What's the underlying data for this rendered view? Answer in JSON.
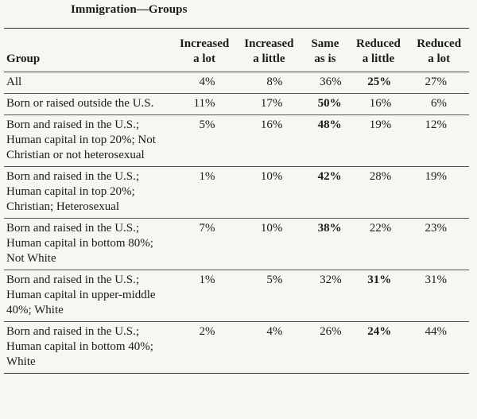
{
  "title": "Immigration—Groups",
  "columns": {
    "group": "Group",
    "increased_a_lot": [
      "Increased",
      "a lot"
    ],
    "increased_a_little": [
      "Increased",
      "a little"
    ],
    "same_as_is": [
      "Same",
      "as is"
    ],
    "reduced_a_little": [
      "Reduced",
      "a little"
    ],
    "reduced_a_lot": [
      "Reduced",
      "a lot"
    ]
  },
  "rows": [
    {
      "group": "All",
      "values": [
        "4%",
        "8%",
        "36%",
        "25%",
        "27%"
      ],
      "bold_index": 3
    },
    {
      "group": "Born or raised outside the U.S.",
      "values": [
        "11%",
        "17%",
        "50%",
        "16%",
        "6%"
      ],
      "bold_index": 2
    },
    {
      "group": "Born and raised in the U.S.; Human capital in top 20%; Not Christian or not heterosexual",
      "values": [
        "5%",
        "16%",
        "48%",
        "19%",
        "12%"
      ],
      "bold_index": 2
    },
    {
      "group": "Born and raised in the U.S.; Human capital in top 20%; Christian; Heterosexual",
      "values": [
        "1%",
        "10%",
        "42%",
        "28%",
        "19%"
      ],
      "bold_index": 2
    },
    {
      "group": "Born and raised in the U.S.; Human capital in bottom 80%; Not White",
      "values": [
        "7%",
        "10%",
        "38%",
        "22%",
        "23%"
      ],
      "bold_index": 2
    },
    {
      "group": "Born and raised in the U.S.; Human capital in upper-middle 40%; White",
      "values": [
        "1%",
        "5%",
        "32%",
        "31%",
        "31%"
      ],
      "bold_index": 3
    },
    {
      "group": "Born and raised in the U.S.; Human capital in bottom 40%; White",
      "values": [
        "2%",
        "4%",
        "26%",
        "24%",
        "44%"
      ],
      "bold_index": 3
    }
  ]
}
